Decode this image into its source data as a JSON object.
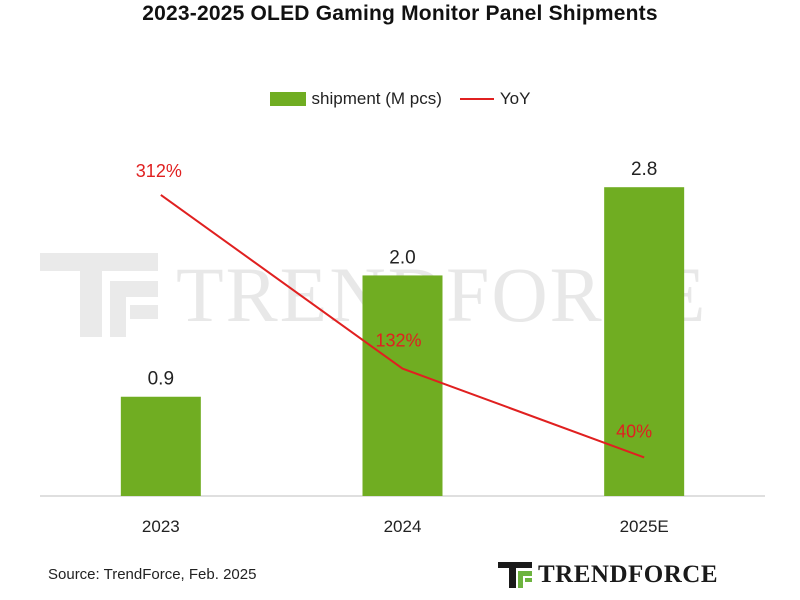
{
  "chart_data": {
    "type": "bar",
    "title": "2023-2025 OLED Gaming Monitor Panel Shipments",
    "categories": [
      "2023",
      "2024",
      "2025E"
    ],
    "series": [
      {
        "name": "shipment (M pcs)",
        "type": "bar",
        "values": [
          0.9,
          2.0,
          2.8
        ],
        "labels": [
          "0.9",
          "2.0",
          "2.8"
        ],
        "color": "#70ad22"
      },
      {
        "name": "YoY",
        "type": "line",
        "values": [
          312,
          132,
          40
        ],
        "labels": [
          "312%",
          "132%",
          "40%"
        ],
        "color": "#e02020"
      }
    ],
    "ylim": [
      0,
      3.5
    ],
    "y2lim": [
      0,
      400
    ],
    "grid": false,
    "legend_position": "top"
  },
  "source": "Source: TrendForce, Feb. 2025",
  "brand": {
    "logo_text": "TRENDFORCE",
    "watermark_text": "TRENDFORCE"
  }
}
